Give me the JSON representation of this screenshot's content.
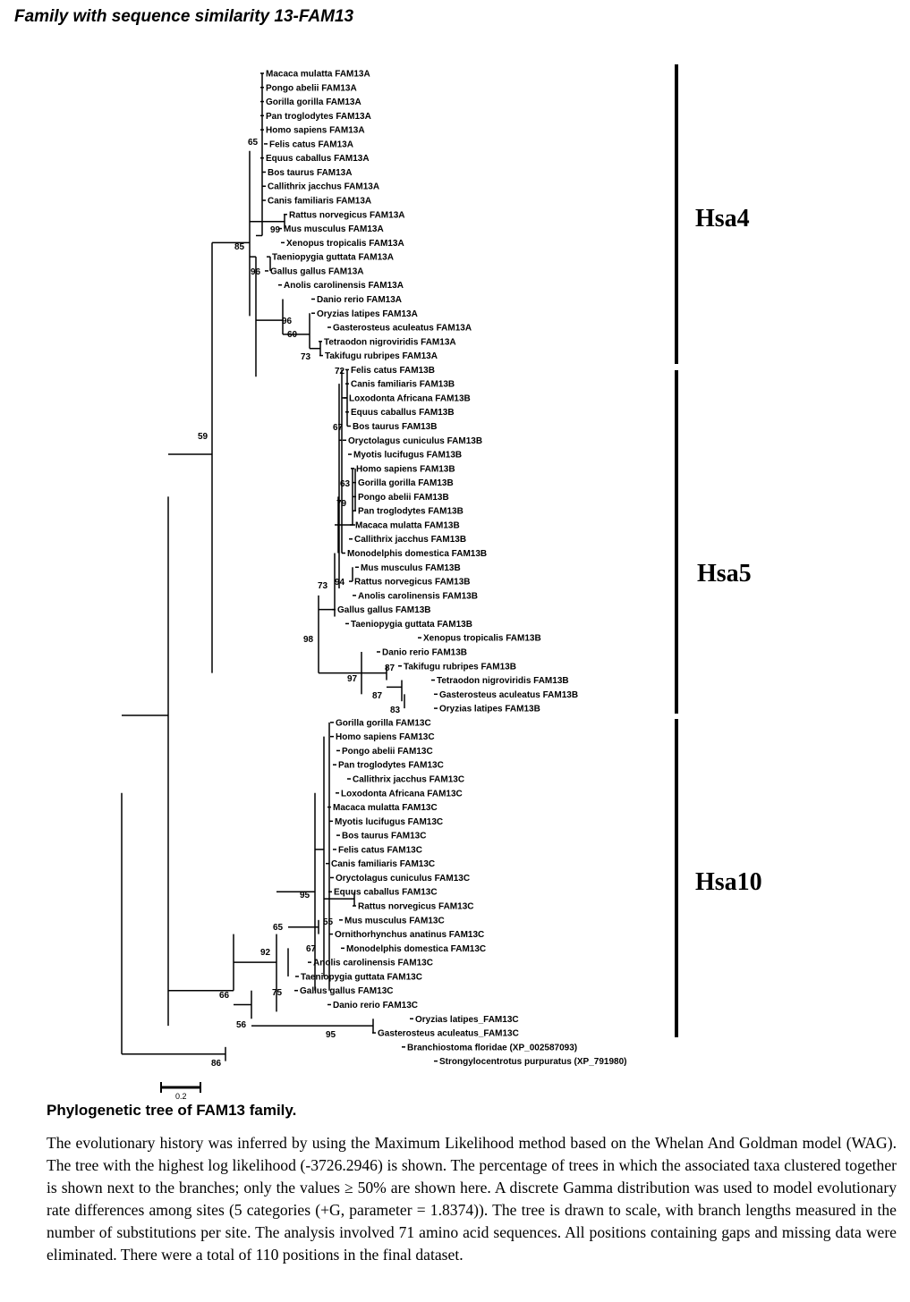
{
  "header": {
    "title": "Family with sequence similarity 13-FAM13"
  },
  "tree": {
    "leaves": [
      "Macaca mulatta FAM13A",
      "Pongo abelii FAM13A",
      "Gorilla gorilla FAM13A",
      "Pan troglodytes FAM13A",
      "Homo sapiens FAM13A",
      "Felis catus FAM13A",
      "Equus caballus FAM13A",
      "Bos taurus FAM13A",
      "Callithrix jacchus FAM13A",
      "Canis familiaris FAM13A",
      "Rattus norvegicus FAM13A",
      "Mus musculus FAM13A",
      "Xenopus tropicalis FAM13A",
      "Taeniopygia guttata FAM13A",
      "Gallus gallus FAM13A",
      "Anolis carolinensis FAM13A",
      "Danio rerio FAM13A",
      "Oryzias latipes FAM13A",
      "Gasterosteus aculeatus FAM13A",
      "Tetraodon nigroviridis FAM13A",
      "Takifugu rubripes FAM13A",
      "Felis catus FAM13B",
      "Canis familiaris FAM13B",
      "Loxodonta Africana FAM13B",
      "Equus caballus FAM13B",
      "Bos taurus FAM13B",
      "Oryctolagus cuniculus FAM13B",
      "Myotis lucifugus FAM13B",
      "Homo sapiens FAM13B",
      "Gorilla gorilla FAM13B",
      "Pongo abelii FAM13B",
      "Pan troglodytes FAM13B",
      "Macaca mulatta FAM13B",
      "Callithrix jacchus FAM13B",
      "Monodelphis domestica FAM13B",
      "Mus musculus FAM13B",
      "Rattus norvegicus FAM13B",
      "Anolis carolinensis FAM13B",
      "Gallus gallus FAM13B",
      "Taeniopygia guttata FAM13B",
      "Xenopus tropicalis FAM13B",
      "Danio rerio FAM13B",
      "Takifugu rubripes FAM13B",
      "Tetraodon nigroviridis FAM13B",
      "Gasterosteus aculeatus FAM13B",
      "Oryzias latipes FAM13B",
      "Gorilla gorilla FAM13C",
      "Homo sapiens FAM13C",
      "Pongo abelii FAM13C",
      "Pan troglodytes FAM13C",
      "Callithrix jacchus FAM13C",
      "Loxodonta Africana FAM13C",
      "Macaca mulatta FAM13C",
      "Myotis lucifugus FAM13C",
      "Bos taurus FAM13C",
      "Felis catus FAM13C",
      "Canis familiaris FAM13C",
      "Oryctolagus cuniculus FAM13C",
      "Equus caballus FAM13C",
      "Rattus norvegicus FAM13C",
      "Mus musculus FAM13C",
      "Ornithorhynchus anatinus FAM13C",
      "Monodelphis domestica FAM13C",
      "Anolis carolinensis FAM13C",
      "Taeniopygia guttata FAM13C",
      "Gallus gallus FAM13C",
      "Danio rerio FAM13C",
      "Oryzias latipes_FAM13C",
      "Gasterosteus aculeatus_FAM13C",
      "Branchiostoma floridae (XP_002587093)",
      "Strongylocentrotus purpuratus (XP_791980)"
    ],
    "bootstrap": [
      "65",
      "99",
      "85",
      "96",
      "96",
      "60",
      "73",
      "59",
      "72",
      "67",
      "63",
      "79",
      "94",
      "73",
      "98",
      "87",
      "97",
      "87",
      "83",
      "95",
      "65",
      "55",
      "92",
      "67",
      "75",
      "66",
      "56",
      "95",
      "86"
    ],
    "chromosomes": [
      "Hsa4",
      "Hsa5",
      "Hsa10"
    ],
    "scale_bar": "0.2"
  },
  "caption": {
    "title": "Phylogenetic tree of FAM13 family.",
    "body": "The evolutionary history was inferred by using the Maximum Likelihood method based on the Whelan And Goldman model (WAG). The tree with the highest log likelihood (-3726.2946) is shown. The percentage of trees in which the associated taxa clustered together is shown next to the branches; only the values ≥ 50% are shown here. A discrete Gamma distribution was used to model evolutionary rate differences among sites (5 categories (+G, parameter = 1.8374)). The tree is drawn to scale, with branch lengths measured in the number of substitutions per site. The analysis involved 71 amino acid sequences. All positions containing gaps and missing data were eliminated. There were a total of 110 positions in the final dataset."
  }
}
